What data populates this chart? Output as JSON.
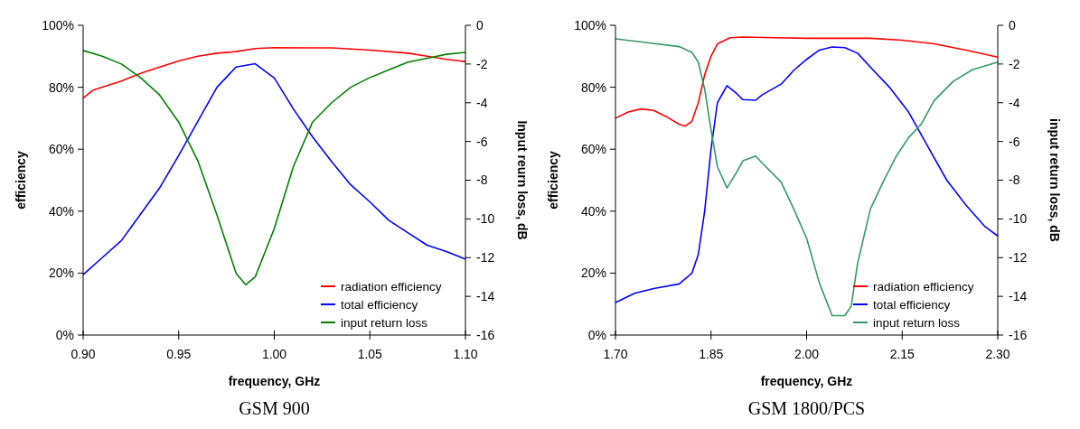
{
  "chart_data": [
    {
      "type": "line",
      "title": "GSM 900",
      "xlabel": "frequency, GHz",
      "ylabel": "efficiency",
      "y2label": "Input reurn loss, dB",
      "legend": "bottom right",
      "grid": false,
      "marker": "none",
      "line_style": "solid",
      "xlim": [
        0.9,
        1.1
      ],
      "xticks": [
        {
          "value": 0.9,
          "label": "0.90"
        },
        {
          "value": 0.95,
          "label": "0.95"
        },
        {
          "value": 1.0,
          "label": "1.00"
        },
        {
          "value": 1.05,
          "label": "1.05"
        },
        {
          "value": 1.1,
          "label": "1.10"
        }
      ],
      "ylim": [
        0,
        100
      ],
      "yticks": [
        {
          "value": 0,
          "label": "0%"
        },
        {
          "value": 20,
          "label": "20%"
        },
        {
          "value": 40,
          "label": "40%"
        },
        {
          "value": 60,
          "label": "60%"
        },
        {
          "value": 80,
          "label": "80%"
        },
        {
          "value": 100,
          "label": "100%"
        }
      ],
      "y2lim": [
        -16,
        0
      ],
      "y2ticks": [
        -16,
        -14,
        -12,
        -10,
        -8,
        -6,
        -4,
        -2,
        0
      ],
      "series": [
        {
          "name": "radiation efficiency",
          "color": "#ff0000",
          "x": [
            0.9,
            0.905,
            0.91,
            0.92,
            0.93,
            0.94,
            0.95,
            0.96,
            0.97,
            0.98,
            0.99,
            1.0,
            1.02,
            1.03,
            1.05,
            1.07,
            1.08,
            1.09,
            1.1
          ],
          "values": [
            76.5,
            79,
            80,
            82,
            84.5,
            86.5,
            88.5,
            90,
            91,
            91.5,
            92.5,
            92.8,
            92.7,
            92.7,
            92,
            91,
            90,
            89,
            88.3
          ]
        },
        {
          "name": "total efficiency",
          "color": "#0000ff",
          "x": [
            0.9,
            0.91,
            0.92,
            0.93,
            0.94,
            0.95,
            0.96,
            0.97,
            0.98,
            0.99,
            1.0,
            1.01,
            1.02,
            1.03,
            1.04,
            1.05,
            1.06,
            1.07,
            1.08,
            1.09,
            1.1
          ],
          "values": [
            19.5,
            25,
            30.5,
            39,
            47.5,
            58,
            69,
            80,
            86.5,
            87.6,
            83,
            73,
            64,
            56,
            48.5,
            43,
            37,
            33,
            29,
            27,
            24.5
          ]
        },
        {
          "name": "input return loss",
          "color": "#008000",
          "axis": "y2",
          "x": [
            0.9,
            0.91,
            0.92,
            0.93,
            0.94,
            0.95,
            0.96,
            0.97,
            0.98,
            0.985,
            0.99,
            1.0,
            1.01,
            1.02,
            1.03,
            1.04,
            1.05,
            1.06,
            1.07,
            1.08,
            1.09,
            1.1
          ],
          "values": [
            -1.3,
            -1.6,
            -2.0,
            -2.7,
            -3.6,
            -5.0,
            -7.0,
            -9.8,
            -12.8,
            -13.4,
            -13.0,
            -10.5,
            -7.3,
            -5.0,
            -4.0,
            -3.2,
            -2.7,
            -2.3,
            -1.9,
            -1.7,
            -1.5,
            -1.4
          ]
        }
      ]
    },
    {
      "type": "line",
      "title": "GSM 1800/PCS",
      "xlabel": "frequency, GHz",
      "ylabel": "efficiency",
      "y2label": "input return loss, dB",
      "legend": "bottom right",
      "grid": false,
      "marker": "none",
      "line_style": "solid",
      "xlim": [
        1.7,
        2.3
      ],
      "xticks": [
        {
          "value": 1.7,
          "label": "1.70"
        },
        {
          "value": 1.85,
          "label": "1.85"
        },
        {
          "value": 2.0,
          "label": "2.00"
        },
        {
          "value": 2.15,
          "label": "2.15"
        },
        {
          "value": 2.3,
          "label": "2.30"
        }
      ],
      "ylim": [
        0,
        100
      ],
      "yticks": [
        {
          "value": 0,
          "label": "0%"
        },
        {
          "value": 20,
          "label": "20%"
        },
        {
          "value": 40,
          "label": "40%"
        },
        {
          "value": 60,
          "label": "60%"
        },
        {
          "value": 80,
          "label": "80%"
        },
        {
          "value": 100,
          "label": "100%"
        }
      ],
      "y2lim": [
        -16,
        0
      ],
      "y2ticks": [
        -16,
        -14,
        -12,
        -10,
        -8,
        -6,
        -4,
        -2,
        0
      ],
      "series": [
        {
          "name": "radiation efficiency",
          "color": "#ff0000",
          "x": [
            1.7,
            1.72,
            1.74,
            1.76,
            1.78,
            1.8,
            1.81,
            1.82,
            1.83,
            1.84,
            1.85,
            1.86,
            1.88,
            1.9,
            1.95,
            2.0,
            2.1,
            2.15,
            2.2,
            2.25,
            2.3
          ],
          "values": [
            70,
            72,
            73,
            72.5,
            70.5,
            68,
            67.5,
            69,
            75,
            84,
            90,
            94,
            96,
            96.2,
            96,
            95.8,
            95.8,
            95.2,
            94,
            92,
            89.7
          ]
        },
        {
          "name": "total efficiency",
          "color": "#0000ff",
          "x": [
            1.7,
            1.73,
            1.76,
            1.8,
            1.82,
            1.83,
            1.84,
            1.85,
            1.86,
            1.875,
            1.89,
            1.9,
            1.92,
            1.93,
            1.96,
            1.98,
            2.0,
            2.02,
            2.04,
            2.06,
            2.08,
            2.1,
            2.13,
            2.16,
            2.19,
            2.22,
            2.25,
            2.28,
            2.3
          ],
          "values": [
            10.5,
            13.5,
            15,
            16.5,
            20,
            26,
            40,
            60,
            75,
            80.5,
            78,
            76,
            75.8,
            77.5,
            81,
            85.5,
            89,
            92,
            93,
            92.8,
            91,
            86.5,
            80,
            72,
            61,
            50,
            42,
            35,
            32
          ]
        },
        {
          "name": "input return loss",
          "color": "#339966",
          "axis": "y2",
          "x": [
            1.7,
            1.75,
            1.8,
            1.82,
            1.83,
            1.84,
            1.85,
            1.86,
            1.875,
            1.89,
            1.9,
            1.92,
            1.93,
            1.96,
            1.98,
            2.0,
            2.02,
            2.04,
            2.06,
            2.07,
            2.08,
            2.1,
            2.12,
            2.14,
            2.16,
            2.18,
            2.2,
            2.23,
            2.26,
            2.28,
            2.3
          ],
          "values": [
            -0.7,
            -0.9,
            -1.1,
            -1.4,
            -1.9,
            -3.3,
            -5.4,
            -7.3,
            -8.4,
            -7.6,
            -7.0,
            -6.75,
            -7.1,
            -8.1,
            -9.5,
            -11,
            -13.3,
            -15.0,
            -15.0,
            -14.5,
            -12.3,
            -9.5,
            -8.1,
            -6.8,
            -5.8,
            -5.1,
            -3.9,
            -2.9,
            -2.3,
            -2.1,
            -1.9
          ]
        }
      ]
    }
  ]
}
